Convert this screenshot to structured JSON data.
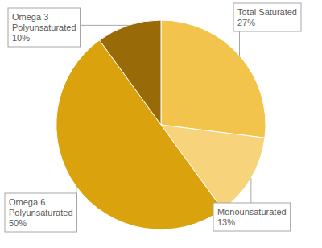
{
  "chart_data": {
    "type": "pie",
    "categories": [
      "Total Saturated",
      "Monounsaturated",
      "Omega 6 Polyunsaturated",
      "Omega 3 Polyunsaturated"
    ],
    "values": [
      27,
      13,
      50,
      10
    ],
    "value_labels": [
      "27%",
      "13%",
      "50%",
      "10%"
    ],
    "colors": [
      "#f2c44c",
      "#f7d47c",
      "#daa30e",
      "#986a08"
    ],
    "data_labels": true
  }
}
